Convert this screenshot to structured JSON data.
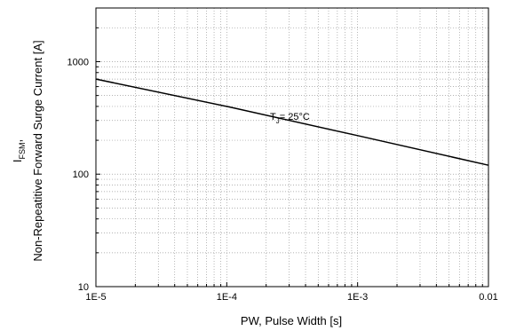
{
  "chart_data": {
    "type": "line",
    "x_scale": "log",
    "y_scale": "log",
    "xlim": [
      1e-05,
      0.01
    ],
    "ylim": [
      10,
      3000
    ],
    "grid": true,
    "x_ticks": [
      {
        "value": 1e-05,
        "label": "1E-5"
      },
      {
        "value": 0.0001,
        "label": "1E-4"
      },
      {
        "value": 0.001,
        "label": "1E-3"
      },
      {
        "value": 0.01,
        "label": "0.01"
      }
    ],
    "y_ticks": [
      {
        "value": 10,
        "label": "10"
      },
      {
        "value": 100,
        "label": "100"
      },
      {
        "value": 1000,
        "label": "1000"
      }
    ],
    "xlabel": "PW, Pulse Width [s]",
    "ylabel": {
      "symbol": "I",
      "subscript": "FSM",
      "suffix": ",",
      "line2": "Non-Repeatitive Forward Surge Current [A]"
    },
    "series": [
      {
        "color": "#000000",
        "x": [
          1e-05,
          0.0001,
          0.001,
          0.01
        ],
        "y": [
          700,
          400,
          220,
          120
        ]
      }
    ],
    "annotation": {
      "symbol": "T",
      "subscript": "J",
      "text": "= 25°C"
    }
  }
}
